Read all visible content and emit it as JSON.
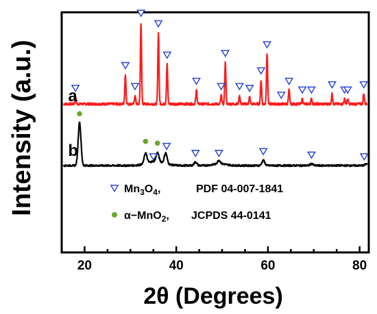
{
  "chart_data": {
    "type": "line",
    "xlabel": "2θ (Degrees)",
    "ylabel": "Intensity (a.u.)",
    "xlim": [
      15,
      82
    ],
    "xticks": [
      20,
      40,
      60,
      80
    ],
    "x_minor_step": 5,
    "grid": false,
    "series": [
      {
        "name": "a",
        "color": "#ff1a1a",
        "offset": 0.5,
        "peaks": [
          [
            18.0,
            0.04
          ],
          [
            28.9,
            0.17
          ],
          [
            31.0,
            0.05
          ],
          [
            32.3,
            0.47
          ],
          [
            36.1,
            0.41
          ],
          [
            38.0,
            0.23
          ],
          [
            44.4,
            0.08
          ],
          [
            49.8,
            0.05
          ],
          [
            50.7,
            0.24
          ],
          [
            53.8,
            0.05
          ],
          [
            56.0,
            0.04
          ],
          [
            58.5,
            0.14
          ],
          [
            59.8,
            0.29
          ],
          [
            64.6,
            0.08
          ],
          [
            67.5,
            0.03
          ],
          [
            69.5,
            0.03
          ],
          [
            74.0,
            0.06
          ],
          [
            76.7,
            0.03
          ],
          [
            77.4,
            0.03
          ],
          [
            80.9,
            0.06
          ]
        ]
      },
      {
        "name": "b",
        "color": "#000000",
        "offset": 0.0,
        "peaks": [
          [
            18.9,
            0.25
          ],
          [
            33.3,
            0.06
          ],
          [
            35.9,
            0.05
          ],
          [
            37.7,
            0.06
          ],
          [
            44.2,
            0.02
          ],
          [
            49.3,
            0.02
          ],
          [
            59.0,
            0.03
          ],
          [
            69.5,
            0.01
          ],
          [
            81.5,
            0.01
          ]
        ]
      }
    ],
    "markers": {
      "mn3o4": [
        [
          18.0,
          "a"
        ],
        [
          28.9,
          "a"
        ],
        [
          31.0,
          "a"
        ],
        [
          32.3,
          "a"
        ],
        [
          36.1,
          "a"
        ],
        [
          38.0,
          "a"
        ],
        [
          44.4,
          "a"
        ],
        [
          49.8,
          "a"
        ],
        [
          50.7,
          "a"
        ],
        [
          53.8,
          "a"
        ],
        [
          56.0,
          "a"
        ],
        [
          58.5,
          "a"
        ],
        [
          59.8,
          "a"
        ],
        [
          62.9,
          "a"
        ],
        [
          64.6,
          "a"
        ],
        [
          67.5,
          "a"
        ],
        [
          69.5,
          "a"
        ],
        [
          74.0,
          "a"
        ],
        [
          76.7,
          "a"
        ],
        [
          77.4,
          "a"
        ],
        [
          80.9,
          "a"
        ],
        [
          35.0,
          "b"
        ],
        [
          37.9,
          "b"
        ],
        [
          44.2,
          "b"
        ],
        [
          49.3,
          "b"
        ],
        [
          59.0,
          "b"
        ],
        [
          69.5,
          "b"
        ],
        [
          81.0,
          "b"
        ]
      ],
      "amno2": [
        [
          18.9,
          "b"
        ],
        [
          33.3,
          "b"
        ],
        [
          35.9,
          "b"
        ]
      ]
    },
    "legend": {
      "placement": "bottom-center",
      "items": [
        {
          "key": "mn3o4",
          "symbol": "triangle-down",
          "color": "#1f3fd6",
          "parts": [
            {
              "t": "Mn"
            },
            {
              "t": "3",
              "sub": true
            },
            {
              "t": "O"
            },
            {
              "t": "4",
              "sub": true
            },
            {
              "t": ","
            }
          ],
          "ref": "PDF 04-007-1841"
        },
        {
          "key": "amno2",
          "symbol": "circle",
          "color": "#6aa82a",
          "parts": [
            {
              "t": "α−MnO"
            },
            {
              "t": "2",
              "sub": true
            },
            {
              "t": ","
            }
          ],
          "ref": "JCPDS 44-0141"
        }
      ]
    }
  }
}
